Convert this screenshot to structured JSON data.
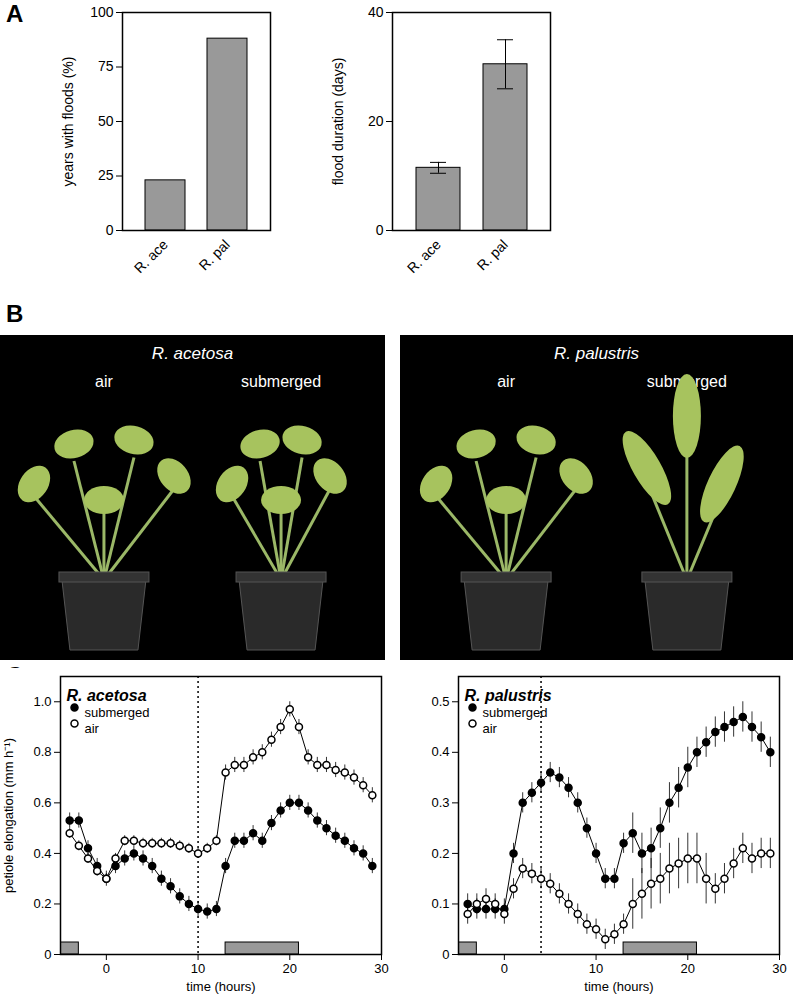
{
  "chart_data": [
    {
      "type": "bar",
      "y_label": "years with floods (%)",
      "categories": [
        "R. ace",
        "R. pal"
      ],
      "values": [
        23,
        88
      ],
      "color": "#999999",
      "ylim": [
        0,
        100
      ],
      "yticks": [
        0,
        25,
        50,
        75,
        100
      ]
    },
    {
      "type": "bar",
      "y_label": "flood duration (days)",
      "categories": [
        "R. ace",
        "R. pal"
      ],
      "values": [
        11.5,
        30.5
      ],
      "errors": [
        1.0,
        4.5
      ],
      "color": "#999999",
      "ylim": [
        0,
        40
      ],
      "yticks": [
        0,
        20,
        40
      ]
    },
    {
      "type": "line",
      "title": "R. acetosa",
      "x_label": "time (hours)",
      "y_label": "petiole elongation (mm h⁻¹)",
      "legend": "top-left",
      "xlim": [
        -5,
        30
      ],
      "xticks": [
        0,
        10,
        20,
        30
      ],
      "ylim": [
        0,
        1.1
      ],
      "yticks": [
        0,
        0.2,
        0.4,
        0.6,
        0.8,
        {
          "value": 1,
          "label": "1.0"
        }
      ],
      "vline": 10,
      "dark_periods": [
        [
          -5,
          -3
        ],
        [
          13,
          21
        ]
      ],
      "x": [
        -4,
        -3,
        -2,
        -1,
        0,
        1,
        2,
        3,
        4,
        5,
        6,
        7,
        8,
        9,
        10,
        11,
        12,
        13,
        14,
        15,
        16,
        17,
        18,
        19,
        20,
        21,
        22,
        23,
        24,
        25,
        26,
        27,
        28,
        29
      ],
      "series": [
        {
          "name": "submerged",
          "color": "#000000",
          "marker": "circle",
          "values": [
            0.53,
            0.53,
            0.42,
            0.35,
            0.3,
            0.35,
            0.38,
            0.4,
            0.38,
            0.35,
            0.3,
            0.27,
            0.23,
            0.2,
            0.18,
            0.17,
            0.18,
            0.35,
            0.45,
            0.45,
            0.48,
            0.45,
            0.52,
            0.57,
            0.6,
            0.6,
            0.57,
            0.53,
            0.5,
            0.47,
            0.45,
            0.42,
            0.4,
            0.35
          ],
          "errors": [
            0.03,
            0.03,
            0.03,
            0.03,
            0.03,
            0.03,
            0.03,
            0.03,
            0.03,
            0.03,
            0.03,
            0.03,
            0.03,
            0.03,
            0.03,
            0.03,
            0.03,
            0.03,
            0.03,
            0.03,
            0.03,
            0.03,
            0.03,
            0.03,
            0.03,
            0.03,
            0.03,
            0.03,
            0.03,
            0.03,
            0.03,
            0.03,
            0.03,
            0.03
          ]
        },
        {
          "name": "air",
          "color": "#ffffff",
          "marker": "circle",
          "values": [
            0.48,
            0.43,
            0.38,
            0.33,
            0.3,
            0.38,
            0.45,
            0.45,
            0.44,
            0.44,
            0.44,
            0.44,
            0.43,
            0.42,
            0.4,
            0.42,
            0.45,
            0.72,
            0.75,
            0.75,
            0.78,
            0.8,
            0.85,
            0.9,
            0.97,
            0.9,
            0.78,
            0.75,
            0.75,
            0.73,
            0.72,
            0.7,
            0.67,
            0.63
          ],
          "errors": [
            0.02,
            0.02,
            0.02,
            0.02,
            0.02,
            0.02,
            0.02,
            0.02,
            0.02,
            0.02,
            0.02,
            0.02,
            0.02,
            0.02,
            0.02,
            0.02,
            0.02,
            0.03,
            0.03,
            0.03,
            0.03,
            0.03,
            0.03,
            0.03,
            0.03,
            0.03,
            0.03,
            0.03,
            0.03,
            0.03,
            0.03,
            0.03,
            0.03,
            0.03
          ]
        }
      ]
    },
    {
      "type": "line",
      "title": "R. palustris",
      "x_label": "time (hours)",
      "legend": "top-left",
      "xlim": [
        -5,
        30
      ],
      "xticks": [
        0,
        10,
        20,
        30
      ],
      "ylim": [
        0,
        0.55
      ],
      "yticks": [
        0,
        0.1,
        0.2,
        0.3,
        0.4,
        0.5
      ],
      "vline": 4,
      "dark_periods": [
        [
          -5,
          -3
        ],
        [
          13,
          21
        ]
      ],
      "x": [
        -4,
        -3,
        -2,
        -1,
        0,
        1,
        2,
        3,
        4,
        5,
        6,
        7,
        8,
        9,
        10,
        11,
        12,
        13,
        14,
        15,
        16,
        17,
        18,
        19,
        20,
        21,
        22,
        23,
        24,
        25,
        26,
        27,
        28,
        29
      ],
      "series": [
        {
          "name": "submerged",
          "color": "#000000",
          "marker": "circle",
          "values": [
            0.1,
            0.09,
            0.09,
            0.09,
            0.09,
            0.2,
            0.3,
            0.32,
            0.34,
            0.36,
            0.35,
            0.33,
            0.3,
            0.25,
            0.2,
            0.15,
            0.15,
            0.22,
            0.24,
            0.2,
            0.21,
            0.25,
            0.3,
            0.33,
            0.37,
            0.4,
            0.42,
            0.44,
            0.45,
            0.46,
            0.47,
            0.45,
            0.43,
            0.4
          ],
          "errors": [
            0.02,
            0.02,
            0.02,
            0.02,
            0.02,
            0.02,
            0.02,
            0.02,
            0.02,
            0.02,
            0.02,
            0.02,
            0.02,
            0.02,
            0.02,
            0.02,
            0.02,
            0.02,
            0.04,
            0.04,
            0.04,
            0.04,
            0.04,
            0.04,
            0.04,
            0.03,
            0.03,
            0.03,
            0.03,
            0.03,
            0.03,
            0.03,
            0.03,
            0.03
          ]
        },
        {
          "name": "air",
          "color": "#ffffff",
          "marker": "circle",
          "values": [
            0.08,
            0.1,
            0.11,
            0.1,
            0.08,
            0.13,
            0.17,
            0.16,
            0.15,
            0.14,
            0.12,
            0.1,
            0.08,
            0.06,
            0.05,
            0.03,
            0.04,
            0.06,
            0.1,
            0.12,
            0.14,
            0.15,
            0.17,
            0.18,
            0.19,
            0.19,
            0.15,
            0.13,
            0.15,
            0.18,
            0.21,
            0.19,
            0.2,
            0.2
          ],
          "errors": [
            0.02,
            0.02,
            0.02,
            0.02,
            0.02,
            0.02,
            0.02,
            0.02,
            0.02,
            0.02,
            0.02,
            0.02,
            0.02,
            0.02,
            0.02,
            0.02,
            0.02,
            0.02,
            0.05,
            0.05,
            0.05,
            0.05,
            0.05,
            0.05,
            0.05,
            0.05,
            0.05,
            0.03,
            0.03,
            0.03,
            0.03,
            0.03,
            0.03,
            0.03
          ]
        }
      ]
    }
  ],
  "figure": {
    "panel_labels": [
      "A",
      "B",
      "C"
    ],
    "photos": [
      {
        "title": "R. acetosa",
        "labels": [
          "air",
          "submerged"
        ]
      },
      {
        "title": "R. palustris",
        "labels": [
          "air",
          "submerged"
        ]
      }
    ]
  }
}
